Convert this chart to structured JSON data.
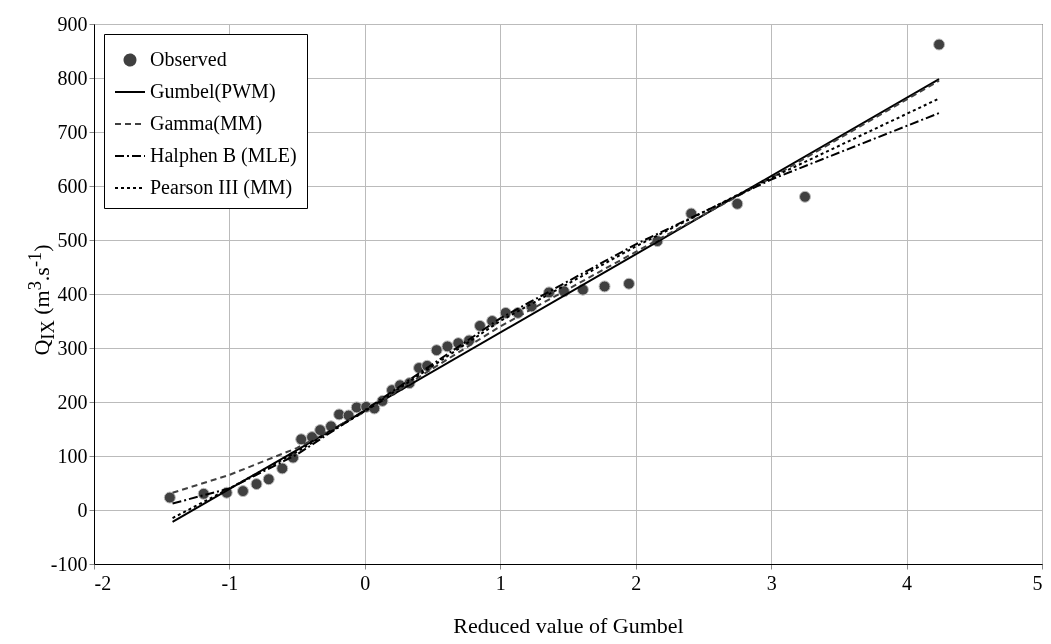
{
  "chart_data": {
    "type": "scatter",
    "xlabel": "Reduced value of Gumbel",
    "ylabel": "Q$_{IX}$ (m$^{3}$.s$^{-1}$)",
    "xlim": [
      -2,
      5
    ],
    "xticks": [
      -2,
      -1,
      0,
      1,
      2,
      3,
      4,
      5
    ],
    "ylim": [
      -100,
      900
    ],
    "yticks": [
      -100,
      0,
      100,
      200,
      300,
      400,
      500,
      600,
      700,
      800,
      900
    ],
    "grid": true,
    "legend": "top left",
    "series": [
      {
        "name": "Observed",
        "marker": "circle",
        "color": "#404040",
        "x": [
          -1.44,
          -1.19,
          -1.02,
          -0.9,
          -0.8,
          -0.71,
          -0.61,
          -0.53,
          -0.47,
          -0.39,
          -0.33,
          -0.25,
          -0.19,
          -0.12,
          -0.06,
          0.01,
          0.07,
          0.13,
          0.2,
          0.26,
          0.33,
          0.4,
          0.46,
          0.53,
          0.61,
          0.69,
          0.77,
          0.85,
          0.94,
          1.04,
          1.13,
          1.23,
          1.36,
          1.47,
          1.61,
          1.77,
          1.95,
          2.16,
          2.41,
          2.75,
          3.25,
          4.24
        ],
        "values": [
          23,
          30,
          32,
          35,
          48,
          57,
          77,
          97,
          131,
          135,
          148,
          155,
          177,
          175,
          190,
          191,
          188,
          202,
          222,
          231,
          235,
          263,
          267,
          296,
          303,
          309,
          314,
          341,
          350,
          365,
          365,
          377,
          403,
          405,
          408,
          414,
          419,
          498,
          549,
          567,
          580,
          862
        ]
      },
      {
        "name": "Gumbel(PWM)",
        "type": "line",
        "line_style": "solid",
        "color": "#000000",
        "x": [
          -1.42,
          4.24
        ],
        "values": [
          -22,
          798
        ]
      },
      {
        "name": "Gamma(MM)",
        "type": "line",
        "line_style": "dashed",
        "color": "#404040",
        "x": [
          -1.42,
          -1,
          -0.5,
          0,
          0.5,
          1,
          2,
          3,
          4.24
        ],
        "values": [
          32,
          65,
          115,
          182,
          262,
          340,
          478,
          615,
          795
        ]
      },
      {
        "name": "Halphen B (MLE)",
        "type": "line",
        "line_style": "dashdot",
        "color": "#000000",
        "x": [
          -1.42,
          -1,
          -0.5,
          0,
          1,
          2,
          3,
          4.24
        ],
        "values": [
          12,
          40,
          103,
          185,
          355,
          492,
          612,
          735
        ]
      },
      {
        "name": "Pearson III (MM)",
        "type": "line",
        "line_style": "dotted",
        "color": "#000000",
        "x": [
          -1.42,
          -1,
          -0.5,
          0,
          1,
          2,
          3,
          4.24
        ],
        "values": [
          -15,
          40,
          108,
          183,
          350,
          488,
          615,
          762
        ]
      }
    ]
  }
}
